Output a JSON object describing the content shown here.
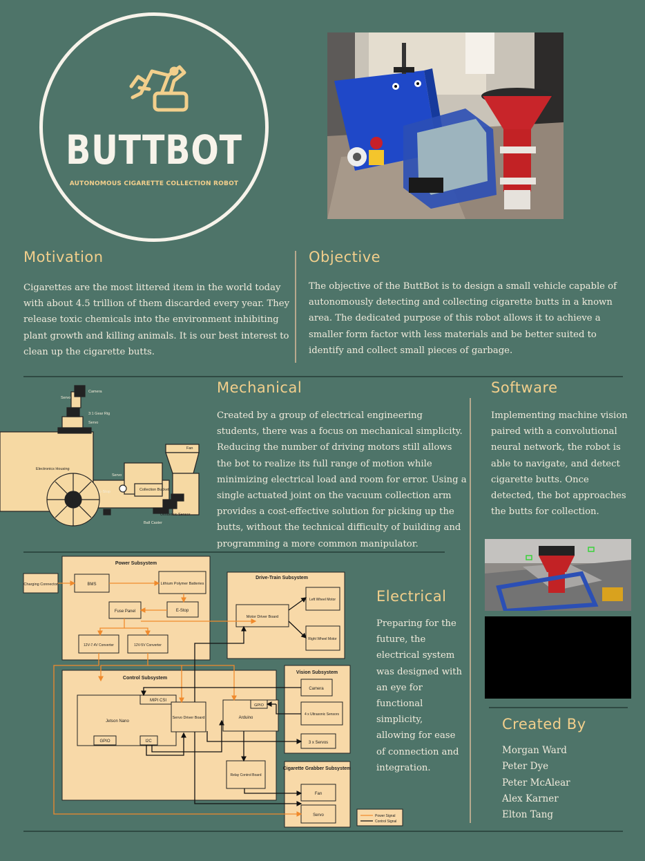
{
  "logo": {
    "title": "BUTTBOT",
    "subtitle": "AUTONOMOUS CIGARETTE COLLECTION ROBOT",
    "icon": "robot-arm-icon"
  },
  "motivation": {
    "heading": "Motivation",
    "text": "Cigarettes are the most littered item in the world today with about 4.5 trillion of them discarded every year. They release toxic chemicals into the environment inhibiting plant growth and killing animals. It is our best interest to clean up the cigarette butts."
  },
  "objective": {
    "heading": "Objective",
    "text": "The objective of the ButtBot is to design a small vehicle capable of autonomously detecting and collecting cigarette butts in a known area. The dedicated purpose of this robot allows it to achieve a smaller form factor with less materials and be better suited to identify and collect small pieces of garbage."
  },
  "mechanical": {
    "heading": "Mechanical",
    "text": "Created by a group of electrical engineering students, there was a focus on mechanical simplicity. Reducing the number of driving motors still allows the bot to realize its full range of motion while minimizing electrical load and room for error. Using a single actuated joint on the vacuum collection arm provides a cost-effective solution for picking up the butts, without the technical difficulty of building and programming a more common manipulator.",
    "diagram_labels": {
      "camera": "Camera",
      "servo_top": "Servo",
      "gear": "3:1 Gear Rig",
      "servo_mid": "Servo",
      "housing": "Electronics Housing",
      "fan": "Fan",
      "servo_arm": "Servo",
      "estop": "E-Stop",
      "bucket": "Collection Bucket",
      "ultrasonic": "Ultrasonic Sensor",
      "caster": "Ball Caster"
    }
  },
  "software": {
    "heading": "Software",
    "text": "Implementing machine vision paired with a convolutional neural network, the robot is able to navigate, and detect cigarette butts. Once detected, the bot approaches the butts for collection."
  },
  "electrical": {
    "heading": "Electrical",
    "text": "Preparing for the future, the electrical system was designed with an eye for functional simplicity, allowing for ease of connection and integration.",
    "diagram": {
      "power_subsystem": "Power Subsystem",
      "charging_connector": "Charging Connector",
      "bms": "BMS",
      "lipo": "Lithium Polymer Batteries",
      "fuse_panel": "Fuse Panel",
      "estop": "E-Stop",
      "conv_74": "12V-7.4V Converter",
      "conv_5": "12V-5V Converter",
      "drivetrain_subsystem": "Drive-Train Subsystem",
      "motor_driver": "Motor Driver Board",
      "left_motor": "Left Wheel Motor",
      "right_motor": "Right Wheel Motor",
      "control_subsystem": "Control Subsystem",
      "mipi": "MIPI CSI",
      "jetson": "Jetson Nano",
      "gpio_jetson": "GPIO",
      "i2c": "I2C",
      "servo_driver": "Servo Driver Board",
      "arduino": "Arduino",
      "gpio_arduino": "GPIO",
      "relay": "Relay Control Board",
      "vision_subsystem": "Vision Subsystem",
      "camera": "Camera",
      "ultrasonic": "4 x Ultrasonic Sensors",
      "servos3": "3 x Servos",
      "grabber_subsystem": "Cigarette Grabber Subsystem",
      "fan": "Fan",
      "servo": "Servo",
      "legend_power": "Power Signal",
      "legend_control": "Control Signal"
    }
  },
  "created_by": {
    "heading": "Created By",
    "names": [
      "Morgan Ward",
      "Peter Dye",
      "Peter McAlear",
      "Alex Karner",
      "Elton Tang"
    ]
  },
  "colors": {
    "background": "#4e7469",
    "heading": "#f2cf8c",
    "box_fill": "#f8d9a8",
    "power_signal": "#f08a2c",
    "control_signal": "#111111"
  }
}
